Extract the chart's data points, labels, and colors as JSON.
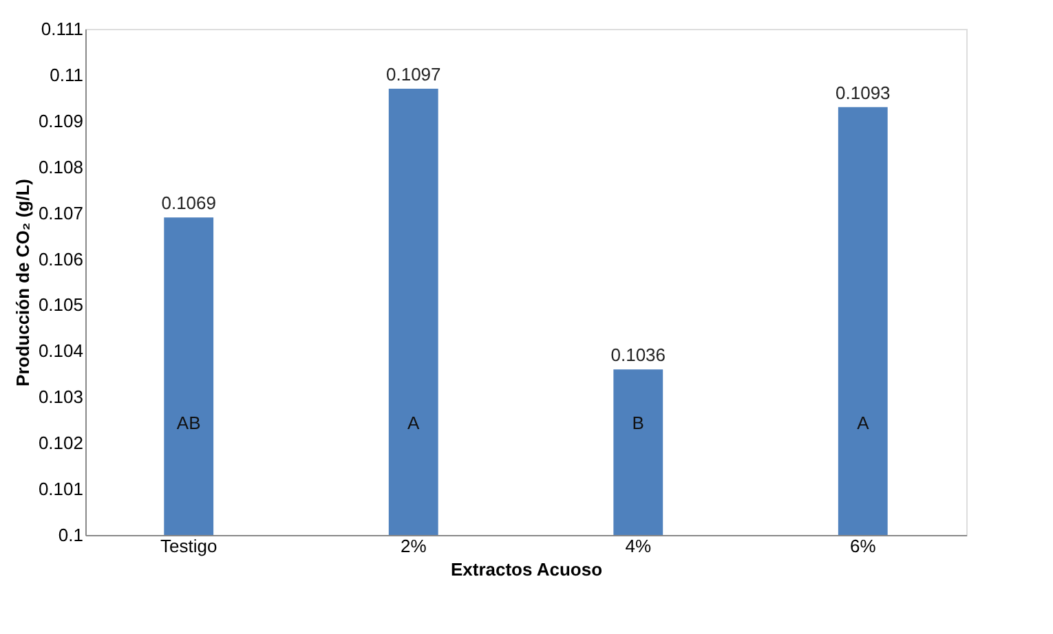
{
  "chart_data": {
    "type": "bar",
    "xlabel": "Extractos Acuoso",
    "ylabel": "Producción de CO₂ (g/L)",
    "categories": [
      "Testigo",
      "2%",
      "4%",
      "6%"
    ],
    "values": [
      0.1069,
      0.1097,
      0.1036,
      0.1093
    ],
    "color": "#4f81bd",
    "ylim": [
      0.1,
      0.111
    ],
    "yticks": [
      0.1,
      0.101,
      0.102,
      0.103,
      0.104,
      0.105,
      0.106,
      0.107,
      0.108,
      0.109,
      0.11,
      0.111
    ],
    "data_labels": true,
    "grid": false,
    "annotations": [
      "AB",
      "A",
      "B",
      "A"
    ]
  }
}
